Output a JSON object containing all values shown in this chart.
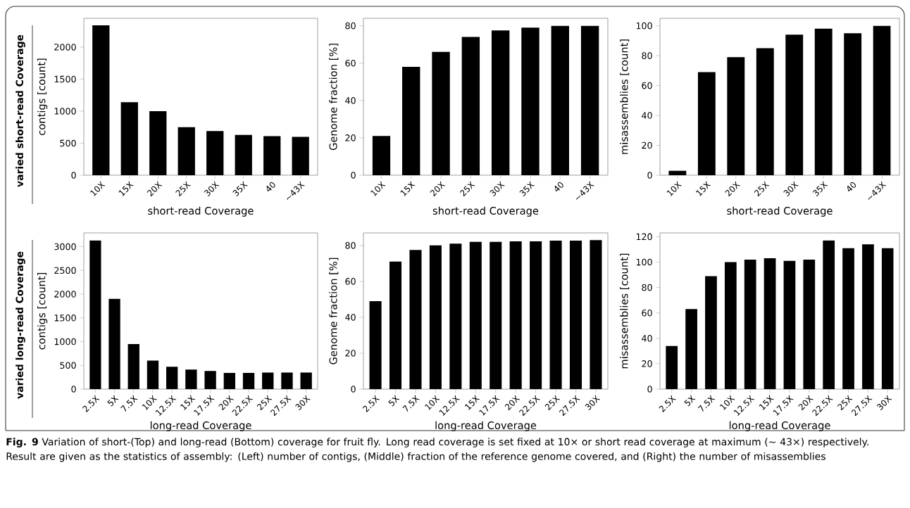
{
  "chart_data": [
    {
      "type": "bar",
      "xlabel": "short-read Coverage",
      "ylabel": "contigs [count]",
      "categories": [
        "10X",
        "15X",
        "20X",
        "25X",
        "30X",
        "35X",
        "40",
        "~43X"
      ],
      "values": [
        2340,
        1140,
        1000,
        750,
        690,
        630,
        610,
        600
      ],
      "color": "#000000",
      "ylim": [
        0,
        2450
      ],
      "yticks": [
        0,
        500,
        1000,
        1500,
        2000
      ],
      "annotations": [
        "varied short-read Coverage"
      ]
    },
    {
      "type": "bar",
      "xlabel": "short-read Coverage",
      "ylabel": "Genome fraction [%]",
      "categories": [
        "10X",
        "15X",
        "20X",
        "25X",
        "30X",
        "35X",
        "40",
        "~43X"
      ],
      "values": [
        21,
        58,
        66,
        74,
        77.5,
        79,
        80,
        80
      ],
      "color": "#000000",
      "ylim": [
        0,
        84
      ],
      "yticks": [
        0,
        20,
        40,
        60,
        80
      ]
    },
    {
      "type": "bar",
      "xlabel": "short-read Coverage",
      "ylabel": "misassemblies [count]",
      "categories": [
        "10X",
        "15X",
        "20X",
        "25X",
        "30X",
        "35X",
        "40",
        "~43X"
      ],
      "values": [
        3,
        69,
        79,
        85,
        94,
        98,
        95,
        100
      ],
      "color": "#000000",
      "ylim": [
        0,
        105
      ],
      "yticks": [
        0,
        20,
        40,
        60,
        80,
        100
      ]
    },
    {
      "type": "bar",
      "xlabel": "long-read Coverage",
      "ylabel": "contigs [count]",
      "categories": [
        "2.5X",
        "5X",
        "7.5X",
        "10X",
        "12.5X",
        "15X",
        "17.5X",
        "20X",
        "22.5X",
        "25X",
        "27.5X",
        "30X"
      ],
      "values": [
        3130,
        1900,
        950,
        600,
        470,
        410,
        380,
        340,
        340,
        350,
        350,
        350
      ],
      "color": "#000000",
      "ylim": [
        0,
        3290
      ],
      "yticks": [
        0,
        500,
        1000,
        1500,
        2000,
        2500,
        3000
      ],
      "annotations": [
        "varied long-read Coverage"
      ]
    },
    {
      "type": "bar",
      "xlabel": "long-read Coverage",
      "ylabel": "Genome fraction [%]",
      "categories": [
        "2.5X",
        "5X",
        "7.5X",
        "10X",
        "12.5X",
        "15X",
        "17.5X",
        "20X",
        "22.5X",
        "25X",
        "27.5X",
        "30X"
      ],
      "values": [
        49,
        71,
        77.5,
        80,
        81,
        82,
        82,
        82.3,
        82.3,
        82.7,
        82.7,
        83
      ],
      "color": "#000000",
      "ylim": [
        0,
        87
      ],
      "yticks": [
        0,
        20,
        40,
        60,
        80
      ]
    },
    {
      "type": "bar",
      "xlabel": "long-read Coverage",
      "ylabel": "misassemblies [count]",
      "categories": [
        "2.5X",
        "5X",
        "7.5X",
        "10X",
        "12.5X",
        "15X",
        "17.5X",
        "20X",
        "22.5X",
        "25X",
        "27.5X",
        "30X"
      ],
      "values": [
        34,
        63,
        89,
        100,
        102,
        103,
        101,
        102,
        117,
        111,
        114,
        111
      ],
      "color": "#000000",
      "ylim": [
        0,
        123
      ],
      "yticks": [
        0,
        20,
        40,
        60,
        80,
        100,
        120
      ],
      "annotations": [
        "**Fig. 9** Variation of short-(Top) and long-read (Bottom) coverage for fruit fly. Long read coverage is set fixed at 10× or short read coverage at maximum (∼ 43×) respectively. Result are given as the statistics of assembly: (Left) number of contigs, (Middle) fraction of the reference genome covered, and (Right) the number of misassemblies"
      ]
    }
  ]
}
